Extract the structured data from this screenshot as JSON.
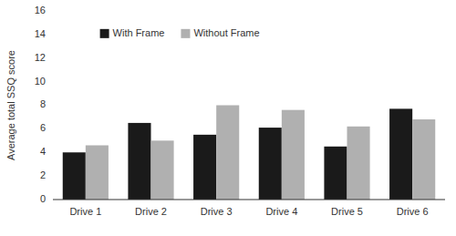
{
  "chart_data": {
    "type": "bar",
    "y_label": "Average total SSQ score",
    "categories": [
      "Drive 1",
      "Drive 2",
      "Drive 3",
      "Drive 4",
      "Drive 5",
      "Drive 6"
    ],
    "series": [
      {
        "name": "With Frame",
        "color": "#1a1a1a",
        "values": [
          4.0,
          6.5,
          5.5,
          6.1,
          4.5,
          7.7
        ]
      },
      {
        "name": "Without Frame",
        "color": "#b0b0b0",
        "values": [
          4.6,
          5.0,
          8.0,
          7.6,
          6.2,
          6.8
        ]
      }
    ],
    "ylim": [
      0,
      16
    ],
    "yticks": [
      0,
      2,
      4,
      6,
      8,
      10,
      12,
      14,
      16
    ],
    "legend": "upper left",
    "grid": false
  }
}
